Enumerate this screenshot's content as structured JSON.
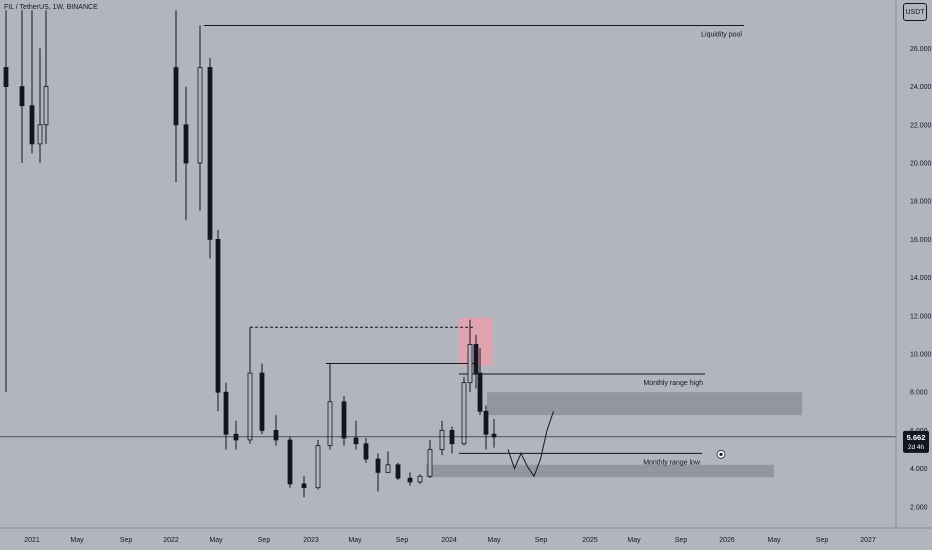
{
  "header": {
    "symbol": "FIL / TetherUS, 1W, BINANCE"
  },
  "axis_badge": "USDT",
  "price_label": {
    "value": "5.662",
    "countdown": "2d 4h",
    "color": "#131722"
  },
  "colors": {
    "background": "#b2b5be",
    "candle": "#131722",
    "zone": "#8e9098",
    "supply": "#e8a0ae"
  },
  "chart_data": {
    "type": "candlestick",
    "yaxis": {
      "range": [
        1.0,
        28.0
      ],
      "ticks": [
        "2.000",
        "4.000",
        "6.000",
        "8.000",
        "10.000",
        "12.000",
        "14.000",
        "16.000",
        "18.000",
        "20.000",
        "22.000",
        "24.000",
        "26.000"
      ]
    },
    "xaxis": {
      "ticks": [
        "2021",
        "May",
        "Sep",
        "2022",
        "May",
        "Sep",
        "2023",
        "May",
        "Sep",
        "2024",
        "May",
        "Sep",
        "2025",
        "May",
        "Sep",
        "2026",
        "May",
        "Sep",
        "2027"
      ]
    },
    "series": [
      {
        "x": "2021-01",
        "o": 25.0,
        "h": 28.0,
        "l": 8.0,
        "c": 24.0
      },
      {
        "x": "2021-03",
        "o": 24.0,
        "h": 28.0,
        "l": 20.0,
        "c": 23.0
      },
      {
        "x": "2021-05",
        "o": 23.0,
        "h": 28.0,
        "l": 20.5,
        "c": 21.0
      },
      {
        "x": "2021-06",
        "o": 21.0,
        "h": 26.0,
        "l": 20.0,
        "c": 22.0
      },
      {
        "x": "2021-07",
        "o": 22.0,
        "h": 28.0,
        "l": 21.0,
        "c": 24.0
      },
      {
        "x": "2022-01",
        "o": 25.0,
        "h": 28.0,
        "l": 19.0,
        "c": 22.0
      },
      {
        "x": "2022-02",
        "o": 22.0,
        "h": 24.0,
        "l": 17.0,
        "c": 20.0
      },
      {
        "x": "2022-03",
        "o": 20.0,
        "h": 27.2,
        "l": 17.5,
        "c": 25.0
      },
      {
        "x": "2022-04",
        "o": 25.0,
        "h": 25.5,
        "l": 15.0,
        "c": 16.0
      },
      {
        "x": "2022-05",
        "o": 16.0,
        "h": 16.5,
        "l": 7.0,
        "c": 8.0
      },
      {
        "x": "2022-06",
        "o": 8.0,
        "h": 8.5,
        "l": 5.0,
        "c": 5.8
      },
      {
        "x": "2022-07",
        "o": 5.8,
        "h": 6.5,
        "l": 5.0,
        "c": 5.5
      },
      {
        "x": "2022-08",
        "o": 5.5,
        "h": 11.4,
        "l": 5.3,
        "c": 9.0
      },
      {
        "x": "2022-09",
        "o": 9.0,
        "h": 9.5,
        "l": 5.8,
        "c": 6.0
      },
      {
        "x": "2022-10",
        "o": 6.0,
        "h": 6.8,
        "l": 5.2,
        "c": 5.5
      },
      {
        "x": "2022-11",
        "o": 5.5,
        "h": 5.7,
        "l": 3.0,
        "c": 3.2
      },
      {
        "x": "2022-12",
        "o": 3.2,
        "h": 3.6,
        "l": 2.5,
        "c": 3.0
      },
      {
        "x": "2023-01",
        "o": 3.0,
        "h": 5.5,
        "l": 2.9,
        "c": 5.2
      },
      {
        "x": "2023-02",
        "o": 5.2,
        "h": 9.5,
        "l": 5.0,
        "c": 7.5
      },
      {
        "x": "2023-03",
        "o": 7.5,
        "h": 7.8,
        "l": 5.2,
        "c": 5.6
      },
      {
        "x": "2023-04",
        "o": 5.6,
        "h": 6.5,
        "l": 5.0,
        "c": 5.3
      },
      {
        "x": "2023-05",
        "o": 5.3,
        "h": 5.6,
        "l": 4.3,
        "c": 4.5
      },
      {
        "x": "2023-06",
        "o": 4.5,
        "h": 4.8,
        "l": 2.8,
        "c": 3.8
      },
      {
        "x": "2023-07",
        "o": 3.8,
        "h": 4.9,
        "l": 3.8,
        "c": 4.2
      },
      {
        "x": "2023-08",
        "o": 4.2,
        "h": 4.3,
        "l": 3.4,
        "c": 3.5
      },
      {
        "x": "2023-09",
        "o": 3.5,
        "h": 3.8,
        "l": 3.1,
        "c": 3.3
      },
      {
        "x": "2023-10",
        "o": 3.3,
        "h": 3.7,
        "l": 3.2,
        "c": 3.6
      },
      {
        "x": "2023-11",
        "o": 3.6,
        "h": 5.5,
        "l": 3.5,
        "c": 5.0
      },
      {
        "x": "2023-12",
        "o": 5.0,
        "h": 6.5,
        "l": 4.7,
        "c": 6.0
      },
      {
        "x": "2024-01",
        "o": 6.0,
        "h": 6.2,
        "l": 4.8,
        "c": 5.3
      },
      {
        "x": "2024-02",
        "o": 5.3,
        "h": 8.8,
        "l": 5.2,
        "c": 8.5
      },
      {
        "x": "2024-03a",
        "o": 8.5,
        "h": 11.8,
        "l": 8.0,
        "c": 10.5
      },
      {
        "x": "2024-03b",
        "o": 10.5,
        "h": 11.0,
        "l": 8.2,
        "c": 9.0
      },
      {
        "x": "2024-04a",
        "o": 9.0,
        "h": 10.3,
        "l": 6.8,
        "c": 7.0
      },
      {
        "x": "2024-04b",
        "o": 7.0,
        "h": 7.3,
        "l": 5.0,
        "c": 5.8
      },
      {
        "x": "2024-05",
        "o": 5.8,
        "h": 6.6,
        "l": 5.1,
        "c": 5.662
      }
    ],
    "levels": [
      {
        "label": "Liquidity pool",
        "y": 27.2
      },
      {
        "label": "",
        "y": 11.4,
        "style": "dashed"
      },
      {
        "label": "",
        "y": 9.5
      },
      {
        "label": "Monthly range high",
        "y": 8.95
      },
      {
        "label": "Monthly range low",
        "y": 4.8
      }
    ],
    "zones": [
      {
        "y": [
          8.0,
          6.8
        ],
        "kind": "demand"
      },
      {
        "y": [
          4.2,
          3.55
        ],
        "kind": "demand"
      },
      {
        "y": [
          11.9,
          9.4
        ],
        "kind": "supply"
      }
    ],
    "projection": [
      5.0,
      4.0,
      4.8,
      4.1,
      3.6,
      4.5,
      6.0,
      7.0
    ]
  }
}
